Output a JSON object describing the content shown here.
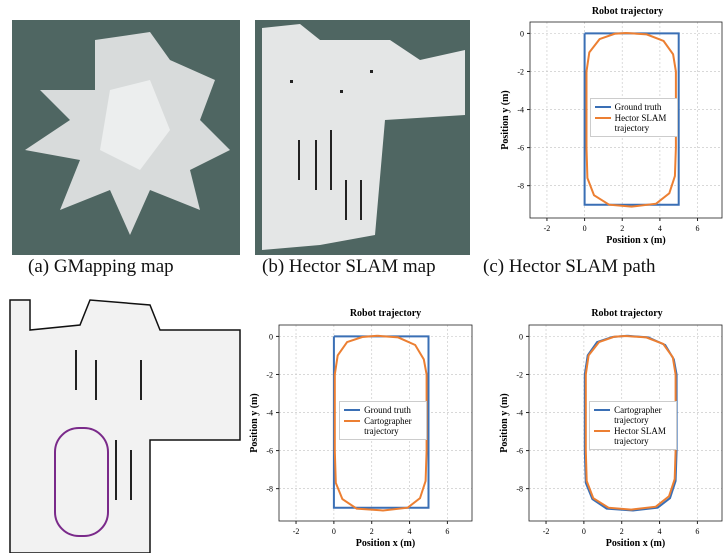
{
  "captions": [
    "(a) GMapping map",
    "(b) Hector SLAM map",
    "(c) Hector SLAM path"
  ],
  "chart_data": [
    {
      "type": "line",
      "title": "Robot trajectory",
      "xlabel": "Position x (m)",
      "ylabel": "Position y (m)",
      "xlim": [
        -2.9,
        7.3
      ],
      "ylim": [
        -9.7,
        0.6
      ],
      "xticks": [
        -2,
        0,
        2,
        4,
        6
      ],
      "yticks": [
        0,
        -2,
        -4,
        -6,
        -8
      ],
      "grid": true,
      "legend": "center",
      "series": [
        {
          "name": "Ground truth",
          "color": "#3a6fb5",
          "x": [
            0,
            5,
            5,
            0,
            0
          ],
          "y": [
            0,
            0,
            -9,
            -9,
            0
          ]
        },
        {
          "name": "Hector SLAM trajectory",
          "color": "#ec7f32",
          "x": [
            2.2,
            3.3,
            4.2,
            4.7,
            4.85,
            4.85,
            4.85,
            4.8,
            4.5,
            3.8,
            2.5,
            1.3,
            0.5,
            0.15,
            0.1,
            0.1,
            0.1,
            0.25,
            0.8,
            1.6,
            2.2
          ],
          "y": [
            0.02,
            -0.05,
            -0.4,
            -1.1,
            -2,
            -4,
            -6,
            -7.5,
            -8.4,
            -8.95,
            -9.1,
            -9.0,
            -8.5,
            -7.6,
            -6,
            -4,
            -2,
            -1.0,
            -0.3,
            -0.02,
            0.02
          ]
        }
      ]
    },
    {
      "type": "line",
      "title": "Robot trajectory",
      "xlabel": "Position x (m)",
      "ylabel": "Position y (m)",
      "xlim": [
        -2.9,
        7.3
      ],
      "ylim": [
        -9.7,
        0.6
      ],
      "xticks": [
        -2,
        0,
        2,
        4,
        6
      ],
      "yticks": [
        0,
        -2,
        -4,
        -6,
        -8
      ],
      "grid": true,
      "legend": "center",
      "series": [
        {
          "name": "Ground truth",
          "color": "#3a6fb5",
          "x": [
            0,
            5,
            5,
            0,
            0
          ],
          "y": [
            0,
            0,
            -9,
            -9,
            0
          ]
        },
        {
          "name": "Cartographer trajectory",
          "color": "#ec7f32",
          "x": [
            2.3,
            3.4,
            4.3,
            4.75,
            4.9,
            4.9,
            4.9,
            4.85,
            4.55,
            3.9,
            2.6,
            1.2,
            0.45,
            0.1,
            0.05,
            0.05,
            0.05,
            0.2,
            0.7,
            1.5,
            2.3
          ],
          "y": [
            0.03,
            -0.05,
            -0.45,
            -1.2,
            -2,
            -4,
            -6,
            -7.6,
            -8.5,
            -9.0,
            -9.15,
            -9.05,
            -8.55,
            -7.7,
            -6,
            -4,
            -2,
            -1.0,
            -0.3,
            -0.03,
            0.03
          ]
        }
      ]
    },
    {
      "type": "line",
      "title": "Robot trajectory",
      "xlabel": "Position x (m)",
      "ylabel": "Position y (m)",
      "xlim": [
        -2.9,
        7.3
      ],
      "ylim": [
        -9.7,
        0.6
      ],
      "xticks": [
        -2,
        0,
        2,
        4,
        6
      ],
      "yticks": [
        0,
        -2,
        -4,
        -6,
        -8
      ],
      "grid": true,
      "legend": "center",
      "series": [
        {
          "name": "Cartographer trajectory",
          "color": "#3a6fb5",
          "x": [
            2.3,
            3.4,
            4.3,
            4.75,
            4.9,
            4.9,
            4.9,
            4.85,
            4.55,
            3.9,
            2.6,
            1.2,
            0.45,
            0.1,
            0.05,
            0.05,
            0.05,
            0.2,
            0.7,
            1.5,
            2.3
          ],
          "y": [
            0.03,
            -0.05,
            -0.45,
            -1.2,
            -2,
            -4,
            -6,
            -7.6,
            -8.5,
            -9.0,
            -9.15,
            -9.05,
            -8.55,
            -7.7,
            -6,
            -4,
            -2,
            -1.0,
            -0.3,
            -0.03,
            0.03
          ]
        },
        {
          "name": "Hector SLAM trajectory",
          "color": "#ec7f32",
          "x": [
            2.2,
            3.3,
            4.2,
            4.7,
            4.85,
            4.85,
            4.85,
            4.8,
            4.5,
            3.8,
            2.5,
            1.3,
            0.5,
            0.15,
            0.1,
            0.1,
            0.1,
            0.25,
            0.8,
            1.6,
            2.2
          ],
          "y": [
            0.02,
            -0.05,
            -0.4,
            -1.1,
            -2,
            -4,
            -6,
            -7.5,
            -8.4,
            -8.95,
            -9.1,
            -9.0,
            -8.5,
            -7.6,
            -6,
            -4,
            -2,
            -1.0,
            -0.3,
            -0.02,
            0.02
          ]
        }
      ]
    }
  ]
}
